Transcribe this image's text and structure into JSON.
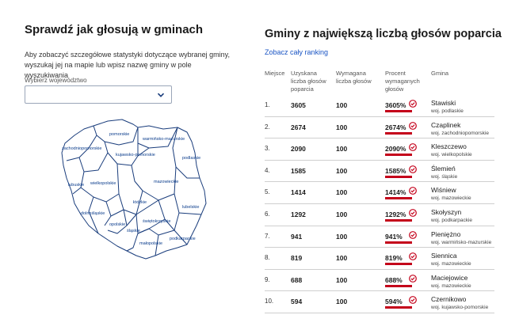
{
  "left": {
    "title": "Sprawdź jak głosują w gminach",
    "description": "Aby zobaczyć szczegółowe statystyki dotyczące wybranej gminy, wyszukaj jej na mapie lub wpisz nazwę gminy w pole wyszukiwania",
    "select_label": "Wybierz województwo",
    "select_value": ""
  },
  "map": {
    "regions": [
      "pomorskie",
      "warmińsko-mazurskie",
      "zachodniopomorskie",
      "kujawsko-pomorskie",
      "podlaskie",
      "lubuskie",
      "wielkopolskie",
      "mazowieckie",
      "łódzkie",
      "lubelskie",
      "dolnośląskie",
      "opolskie",
      "śląskie",
      "świętokrzyskie",
      "małopolskie",
      "podkarpackie"
    ]
  },
  "right": {
    "title": "Gminy z największą liczbą głosów poparcia",
    "link": "Zobacz cały ranking",
    "headers": {
      "place": "Miejsce",
      "votes": "Uzyskana liczba głosów poparcia",
      "required": "Wymagana liczba głosów",
      "percent": "Procent wymaganych głosów",
      "gmina": "Gmina"
    },
    "accent_color": "#c4001a",
    "rows": [
      {
        "place": "1.",
        "votes": "3605",
        "required": "100",
        "percent": "3605%",
        "gmina": "Stawiski",
        "woj": "woj. podlaskie"
      },
      {
        "place": "2.",
        "votes": "2674",
        "required": "100",
        "percent": "2674%",
        "gmina": "Czaplinek",
        "woj": "woj. zachodniopomorskie"
      },
      {
        "place": "3.",
        "votes": "2090",
        "required": "100",
        "percent": "2090%",
        "gmina": "Kleszczewo",
        "woj": "woj. wielkopolskie"
      },
      {
        "place": "4.",
        "votes": "1585",
        "required": "100",
        "percent": "1585%",
        "gmina": "Ślemień",
        "woj": "woj. śląskie"
      },
      {
        "place": "5.",
        "votes": "1414",
        "required": "100",
        "percent": "1414%",
        "gmina": "Wiśniew",
        "woj": "woj. mazowieckie"
      },
      {
        "place": "6.",
        "votes": "1292",
        "required": "100",
        "percent": "1292%",
        "gmina": "Skołyszyn",
        "woj": "woj. podkarpackie"
      },
      {
        "place": "7.",
        "votes": "941",
        "required": "100",
        "percent": "941%",
        "gmina": "Pieniężno",
        "woj": "woj. warmińsko-mazurskie"
      },
      {
        "place": "8.",
        "votes": "819",
        "required": "100",
        "percent": "819%",
        "gmina": "Siennica",
        "woj": "woj. mazowieckie"
      },
      {
        "place": "9.",
        "votes": "688",
        "required": "100",
        "percent": "688%",
        "gmina": "Maciejowice",
        "woj": "woj. mazowieckie"
      },
      {
        "place": "10.",
        "votes": "594",
        "required": "100",
        "percent": "594%",
        "gmina": "Czernikowo",
        "woj": "woj. kujawsko-pomorskie"
      }
    ]
  }
}
